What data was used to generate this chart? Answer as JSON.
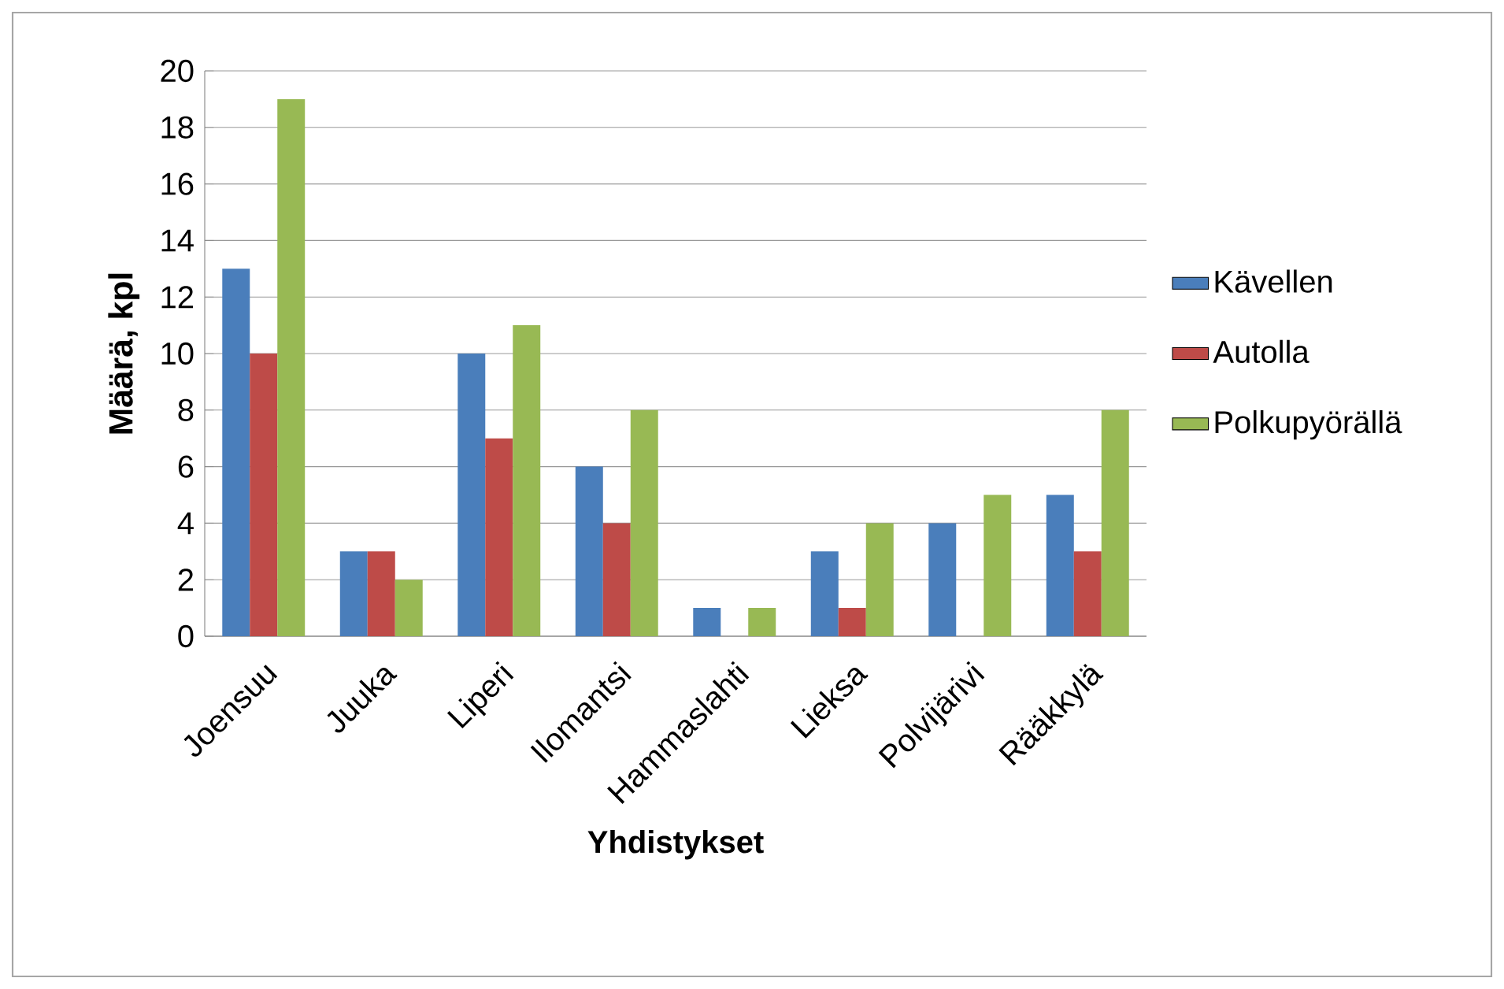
{
  "chart_data": {
    "type": "bar",
    "xlabel": "Yhdistykset",
    "ylabel": "Määrä, kpl",
    "categories": [
      "Joensuu",
      "Juuka",
      "Liperi",
      "Ilomantsi",
      "Hammaslahti",
      "Lieksa",
      "Polvijärivi",
      "Rääkkylä"
    ],
    "series": [
      {
        "name": "Kävellen",
        "color": "#4a7ebb",
        "values": [
          13,
          3,
          10,
          6,
          1,
          3,
          4,
          5
        ]
      },
      {
        "name": "Autolla",
        "color": "#be4b48",
        "values": [
          10,
          3,
          7,
          4,
          0,
          1,
          0,
          3
        ]
      },
      {
        "name": "Polkupyörällä",
        "color": "#98b954",
        "values": [
          19,
          2,
          11,
          8,
          1,
          4,
          5,
          8
        ]
      }
    ],
    "ylim": [
      0,
      20
    ],
    "yticks": [
      0,
      2,
      4,
      6,
      8,
      10,
      12,
      14,
      16,
      18,
      20
    ],
    "grid": "y",
    "legend": "right"
  }
}
